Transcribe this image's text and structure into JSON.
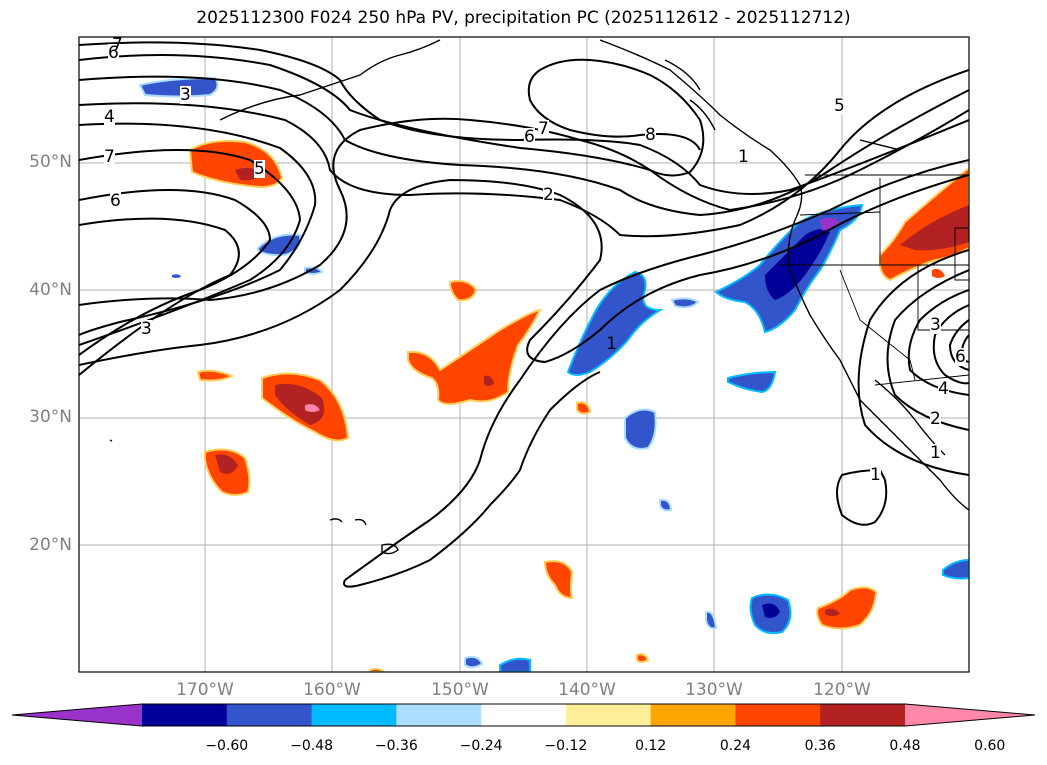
{
  "title": "2025112300 F024 250 hPa PV, precipitation PC (2025112612 - 2025112712)",
  "lat_labels": [
    "50°N",
    "40°N",
    "30°N",
    "20°N"
  ],
  "lon_labels": [
    "170°W",
    "160°W",
    "150°W",
    "140°W",
    "130°W",
    "120°W"
  ],
  "contour_labels": [
    "6",
    "7",
    "3",
    "4",
    "7",
    "6",
    "5",
    "3",
    "6",
    "7",
    "8",
    "2",
    "5",
    "1",
    "1",
    "3",
    "6",
    "4",
    "2",
    "1",
    "1"
  ],
  "colorbar": {
    "ticks": [
      "−0.60",
      "−0.48",
      "−0.36",
      "−0.24",
      "−0.12",
      "0.12",
      "0.24",
      "0.36",
      "0.48",
      "0.60"
    ],
    "colors": [
      "#9933cc",
      "#000099",
      "#3355cc",
      "#00bbff",
      "#aaddff",
      "#ffffff",
      "#ffee99",
      "#ffa500",
      "#ff4500",
      "#b22222",
      "#ff88aa"
    ]
  },
  "colors": {
    "grid": "#b0b0b0",
    "contour": "#000000",
    "coast": "#000000"
  }
}
